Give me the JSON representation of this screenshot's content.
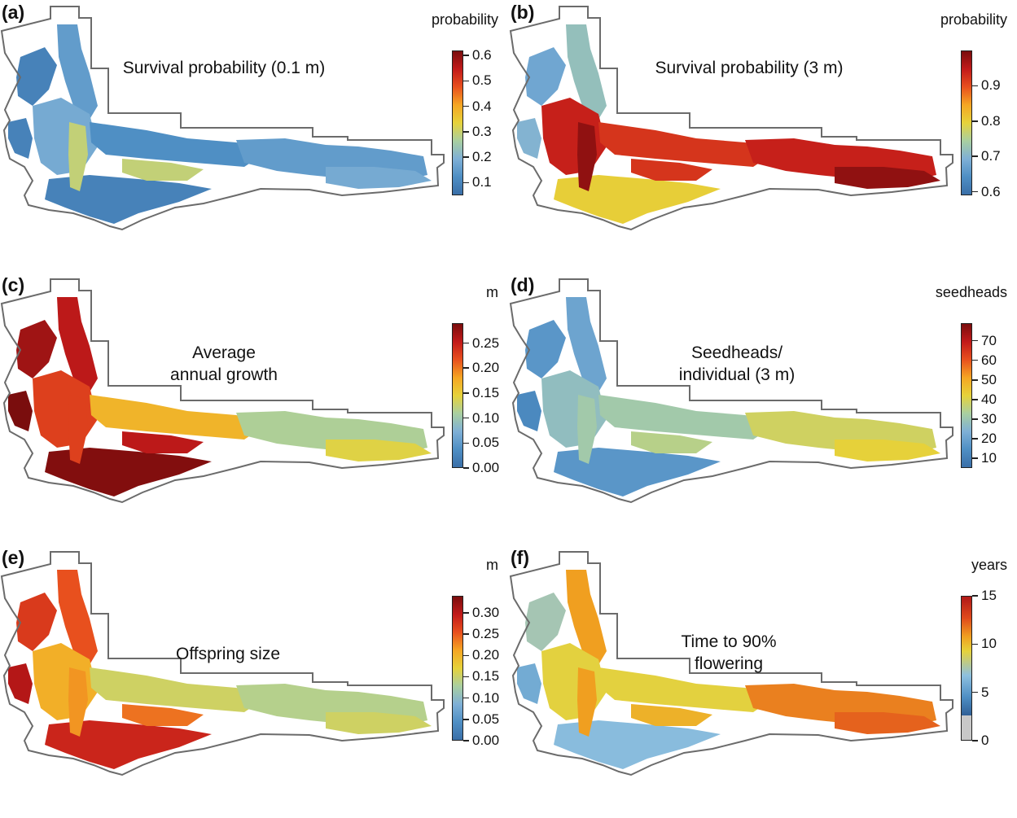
{
  "colors": {
    "scale_main": [
      "#3a6fa8",
      "#4f8fc4",
      "#7fb0d6",
      "#a9cfa0",
      "#e6d23a",
      "#f5a623",
      "#e8501e",
      "#c21a1a",
      "#7a0d0d"
    ],
    "scale_f": [
      "#c8c8c8",
      "#2f5f96",
      "#4f8fc4",
      "#8ec0df",
      "#e6d23a",
      "#f0a020",
      "#e04a1c",
      "#b01818"
    ],
    "outline": "#6b6b6b"
  },
  "panels": [
    {
      "id": "a",
      "letter": "(a)",
      "title_lines": [
        "Survival probability (0.1 m)"
      ],
      "unit": "probability",
      "scale_min": 0.05,
      "scale_max": 0.62,
      "ticks": [
        "0.1",
        "0.2",
        "0.3",
        "0.4",
        "0.5",
        "0.6"
      ],
      "tick_values": [
        0.1,
        0.2,
        0.3,
        0.4,
        0.5,
        0.6
      ],
      "dominant": 0.15
    },
    {
      "id": "b",
      "letter": "(b)",
      "title_lines": [
        "Survival probability (3 m)"
      ],
      "unit": "probability",
      "scale_min": 0.59,
      "scale_max": 1.0,
      "ticks": [
        "0.6",
        "0.7",
        "0.8",
        "0.9"
      ],
      "tick_values": [
        0.6,
        0.7,
        0.8,
        0.9
      ],
      "dominant": 0.8
    },
    {
      "id": "c",
      "letter": "(c)",
      "title_lines": [
        "Average",
        "annual growth"
      ],
      "unit": "m",
      "scale_min": 0.0,
      "scale_max": 0.29,
      "ticks": [
        "0.00",
        "0.05",
        "0.10",
        "0.15",
        "0.20",
        "0.25"
      ],
      "tick_values": [
        0.0,
        0.05,
        0.1,
        0.15,
        0.2,
        0.25
      ],
      "dominant": 0.17
    },
    {
      "id": "d",
      "letter": "(d)",
      "title_lines": [
        "Seedheads/",
        "individual (3 m)"
      ],
      "unit": "seedheads",
      "scale_min": 5,
      "scale_max": 79,
      "ticks": [
        "10",
        "20",
        "30",
        "40",
        "50",
        "60",
        "70"
      ],
      "tick_values": [
        10,
        20,
        30,
        40,
        50,
        60,
        70
      ],
      "dominant": 20
    },
    {
      "id": "e",
      "letter": "(e)",
      "title_lines": [
        "Offspring size"
      ],
      "unit": "m",
      "scale_min": 0.0,
      "scale_max": 0.34,
      "ticks": [
        "0.00",
        "0.05",
        "0.10",
        "0.15",
        "0.20",
        "0.25",
        "0.30"
      ],
      "tick_values": [
        0.0,
        0.05,
        0.1,
        0.15,
        0.2,
        0.25,
        0.3
      ],
      "dominant": 0.17
    },
    {
      "id": "f",
      "letter": "(f)",
      "title_lines": [
        "Time to 90%",
        "flowering"
      ],
      "unit": "years",
      "scale_min": 0,
      "scale_max": 15,
      "ticks": [
        "0",
        "5",
        "10",
        "15"
      ],
      "tick_values": [
        0,
        5,
        10,
        15
      ],
      "dominant": 7
    }
  ]
}
